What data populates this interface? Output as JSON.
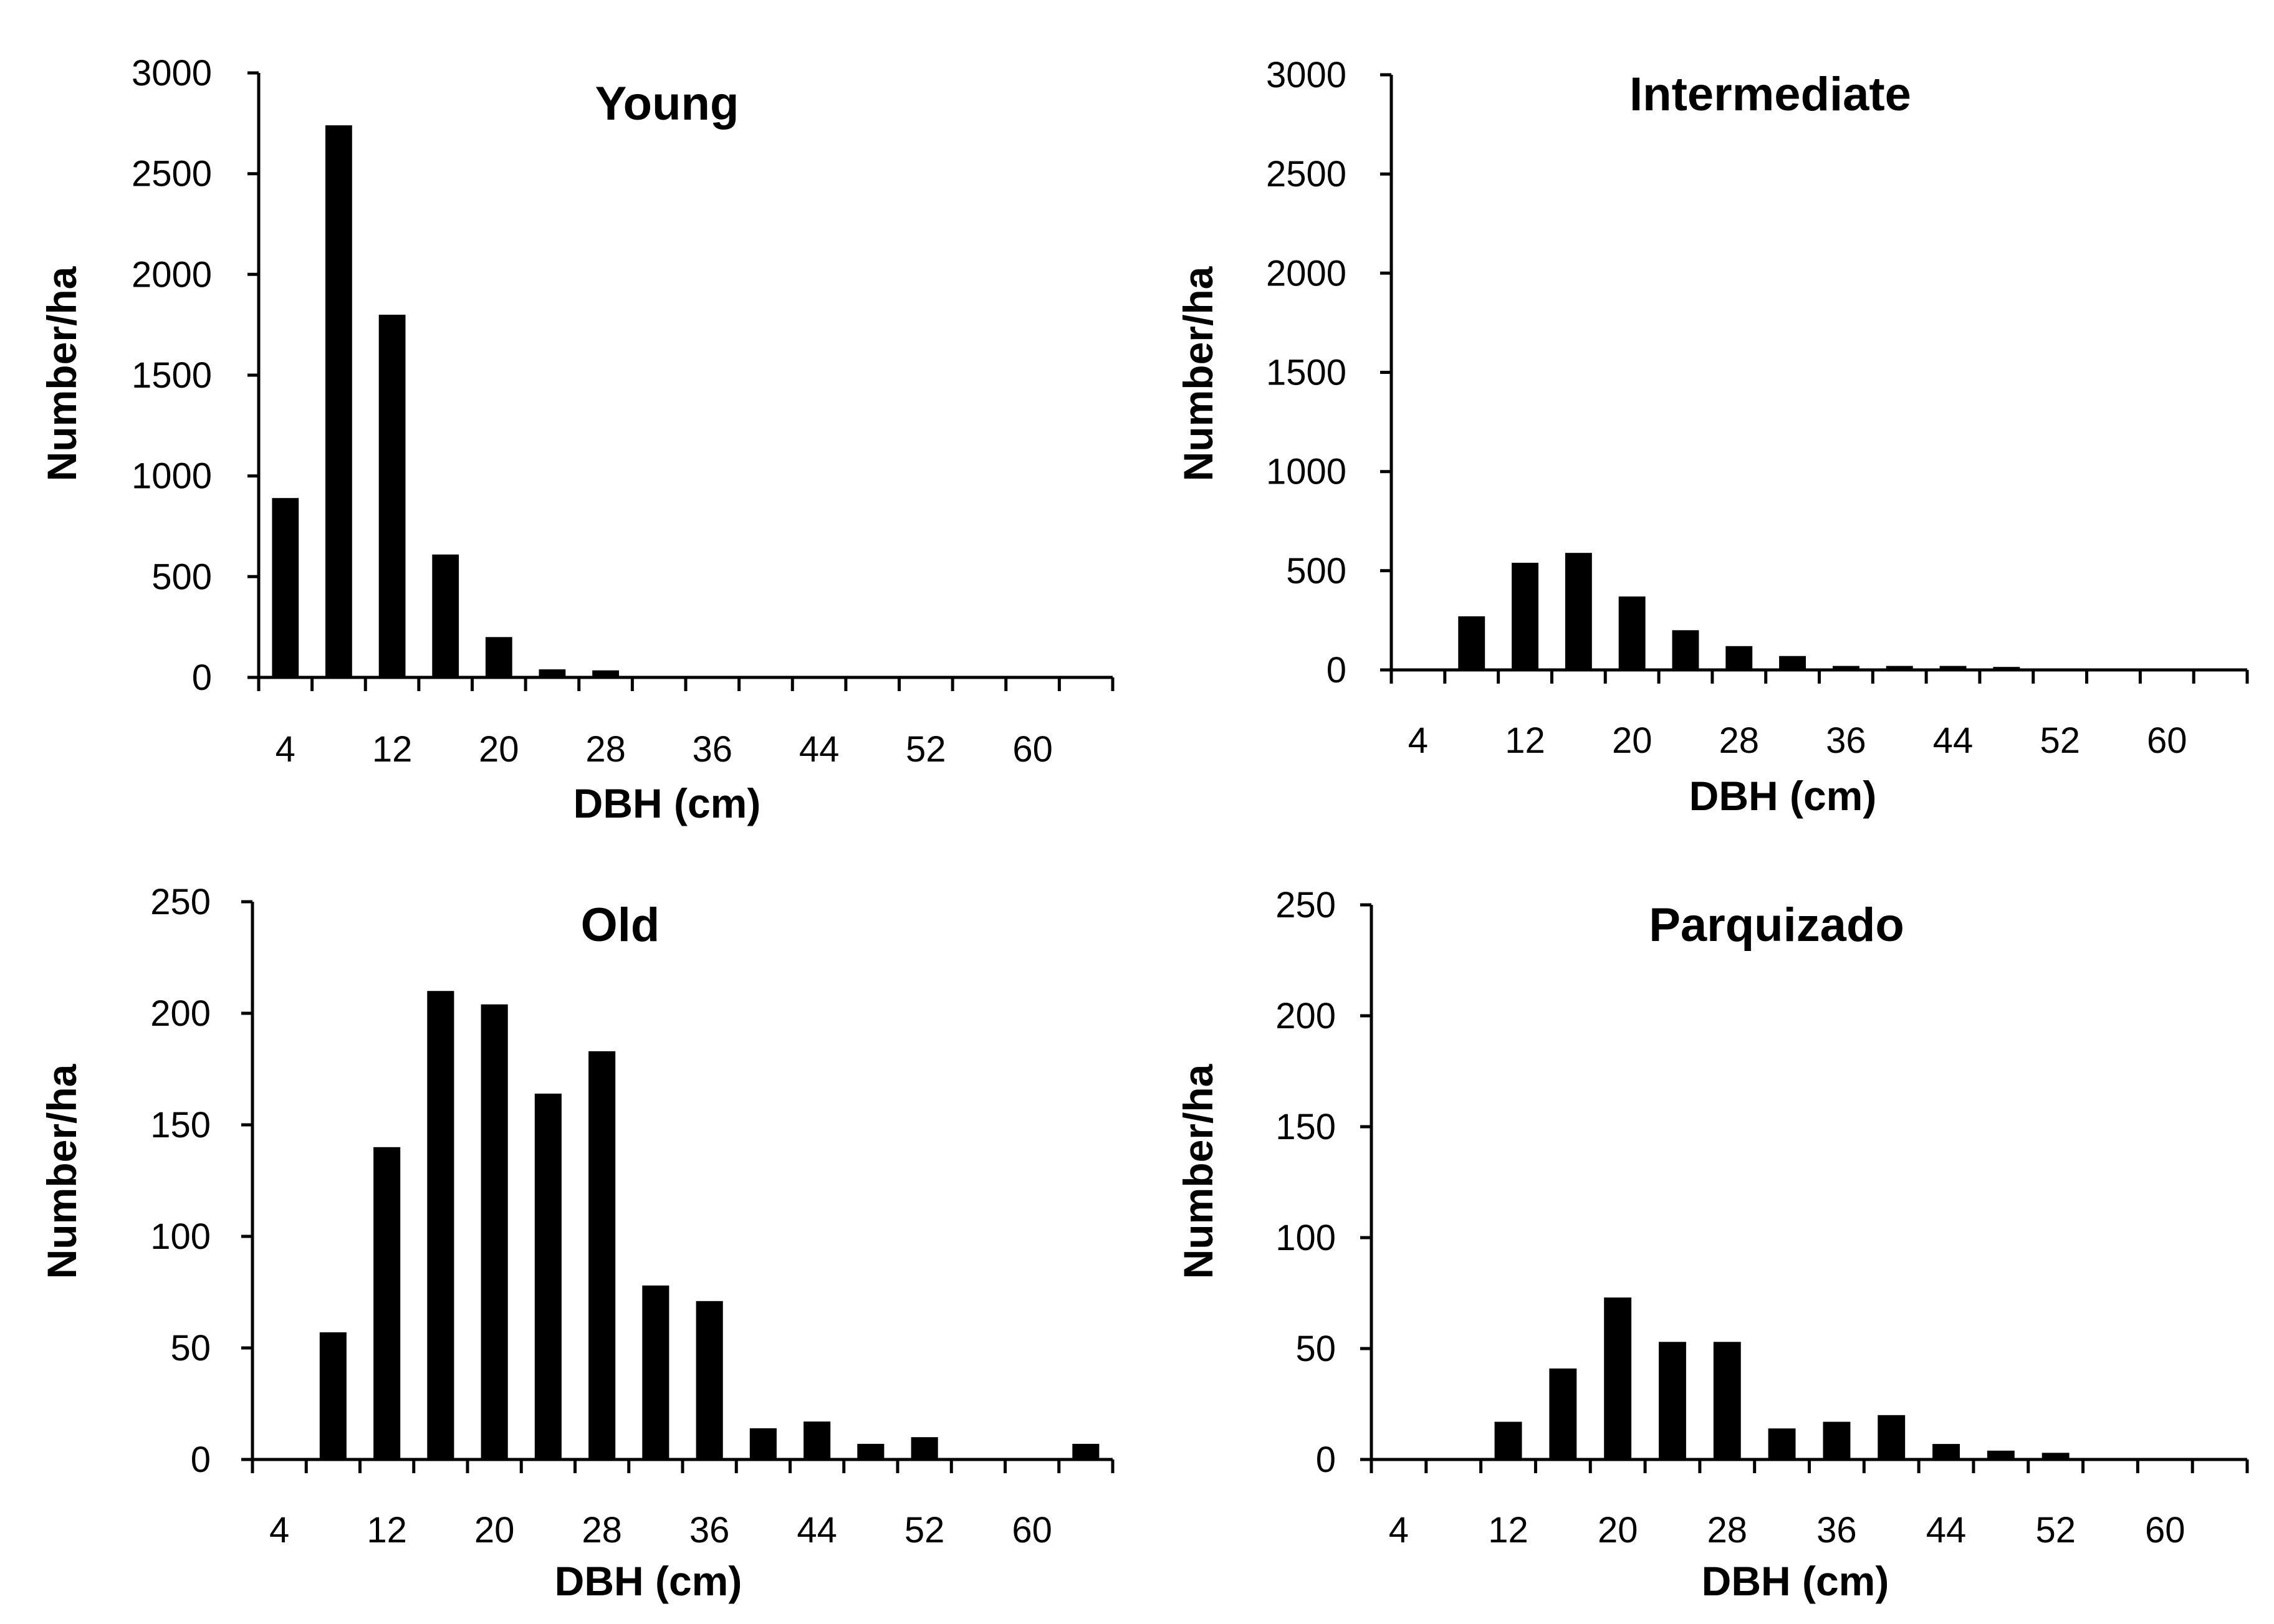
{
  "chart_data": [
    {
      "type": "bar",
      "title": "Young",
      "xlabel": "DBH (cm)",
      "ylabel": "Number/ha",
      "ylim": [
        0,
        3000
      ],
      "yticks": [
        "0",
        "500",
        "1000",
        "1500",
        "2000",
        "2500",
        "3000"
      ],
      "xticks": [
        "4",
        "12",
        "20",
        "28",
        "36",
        "44",
        "52",
        "60"
      ],
      "categories": [
        "4",
        "8",
        "12",
        "16",
        "20",
        "24",
        "28",
        "32",
        "36",
        "40",
        "44",
        "48",
        "52",
        "56",
        "60",
        "64"
      ],
      "values": [
        890,
        2740,
        1800,
        610,
        200,
        40,
        35,
        0,
        0,
        0,
        0,
        0,
        0,
        0,
        0,
        0
      ]
    },
    {
      "type": "bar",
      "title": "Intermediate",
      "xlabel": "DBH (cm)",
      "ylabel": "Number/ha",
      "ylim": [
        0,
        3000
      ],
      "yticks": [
        "0",
        "500",
        "1000",
        "1500",
        "2000",
        "2500",
        "3000"
      ],
      "xticks": [
        "4",
        "12",
        "20",
        "28",
        "36",
        "44",
        "52",
        "60"
      ],
      "categories": [
        "4",
        "8",
        "12",
        "16",
        "20",
        "24",
        "28",
        "32",
        "36",
        "40",
        "44",
        "48",
        "52",
        "56",
        "60",
        "64"
      ],
      "values": [
        0,
        270,
        540,
        590,
        370,
        200,
        120,
        70,
        20,
        20,
        20,
        15,
        0,
        0,
        0,
        0
      ]
    },
    {
      "type": "bar",
      "title": "Old",
      "xlabel": "DBH (cm)",
      "ylabel": "Number/ha",
      "ylim": [
        0,
        250
      ],
      "yticks": [
        "0",
        "50",
        "100",
        "150",
        "200",
        "250"
      ],
      "xticks": [
        "4",
        "12",
        "20",
        "28",
        "36",
        "44",
        "52",
        "60"
      ],
      "categories": [
        "4",
        "8",
        "12",
        "16",
        "20",
        "24",
        "28",
        "32",
        "36",
        "40",
        "44",
        "48",
        "52",
        "56",
        "60",
        "64"
      ],
      "values": [
        0,
        57,
        140,
        210,
        204,
        164,
        183,
        78,
        71,
        14,
        17,
        7,
        10,
        0,
        0,
        7
      ]
    },
    {
      "type": "bar",
      "title": "Parquizado",
      "xlabel": "DBH (cm)",
      "ylabel": "Number/ha",
      "ylim": [
        0,
        250
      ],
      "yticks": [
        "0",
        "50",
        "100",
        "150",
        "200",
        "250"
      ],
      "xticks": [
        "4",
        "12",
        "20",
        "28",
        "36",
        "44",
        "52",
        "60"
      ],
      "categories": [
        "4",
        "8",
        "12",
        "16",
        "20",
        "24",
        "28",
        "32",
        "36",
        "40",
        "44",
        "48",
        "52",
        "56",
        "60",
        "64"
      ],
      "values": [
        0,
        0,
        17,
        41,
        73,
        53,
        53,
        14,
        17,
        20,
        7,
        4,
        3,
        0,
        0,
        0
      ]
    }
  ]
}
